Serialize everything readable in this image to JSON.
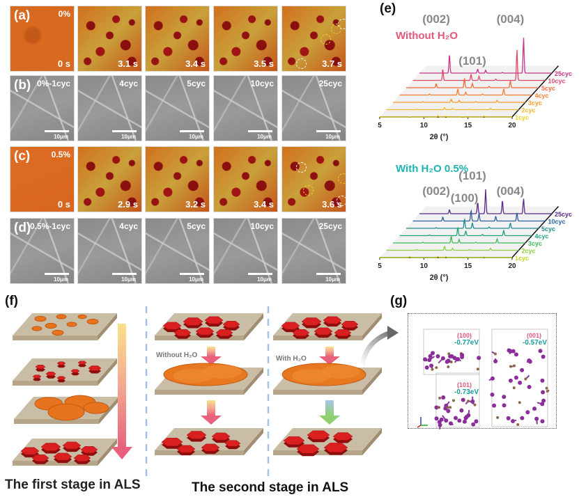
{
  "panels": {
    "a": {
      "label": "(a)",
      "condition": "0%",
      "times": [
        "0 s",
        "3.1 s",
        "3.4 s",
        "3.5 s",
        "3.7 s"
      ]
    },
    "b": {
      "label": "(b)",
      "cycles": [
        "0%-1cyc",
        "4cyc",
        "5cyc",
        "10cyc",
        "25cyc"
      ],
      "scale": "10μm"
    },
    "c": {
      "label": "(c)",
      "condition": "0.5%",
      "times": [
        "0 s",
        "2.9 s",
        "3.2 s",
        "3.4 s",
        "3.6 s"
      ]
    },
    "d": {
      "label": "(d)",
      "cycles": [
        "0.5%-1cyc",
        "4cyc",
        "5cyc",
        "10cyc",
        "25cyc"
      ],
      "scale": "10μm"
    },
    "e": {
      "label": "(e)"
    },
    "f": {
      "label": "(f)",
      "without_h2o": "Without H₂O",
      "with_h2o": "With H₂O",
      "first_stage": "The first stage in ALS",
      "second_stage": "The second stage in ALS"
    },
    "g": {
      "label": "(g)",
      "facets": [
        {
          "plane": "(100)",
          "energy": "-0.77eV"
        },
        {
          "plane": "(001)",
          "energy": "-0.57eV"
        },
        {
          "plane": "(101)",
          "energy": "-0.73eV"
        }
      ]
    }
  },
  "colors": {
    "without": "#e0587a",
    "with": "#1fb3b3",
    "peak_label": "#888888",
    "energy": "#1a9a9a",
    "plane": "#e0587a"
  },
  "chart_data": [
    {
      "type": "line",
      "title": "Without H₂O",
      "xlabel": "2θ (°)",
      "xlim": [
        5,
        20
      ],
      "xticks": [
        "5",
        "10",
        "15",
        "20"
      ],
      "peak_labels": [
        {
          "text": "(002)",
          "x": 8.4
        },
        {
          "text": "(101)",
          "x": 12.5
        },
        {
          "text": "(004)",
          "x": 16.8
        }
      ],
      "peak_positions": [
        8.4,
        11.6,
        12.5,
        14.4,
        16.8
      ],
      "series": [
        {
          "name": "1cyc",
          "color": "#f2d320",
          "heights": [
            0.5,
            2,
            1.5,
            0.5,
            1.5
          ]
        },
        {
          "name": "2cyc",
          "color": "#f5b82a",
          "heights": [
            0.8,
            3,
            2,
            0.8,
            2
          ]
        },
        {
          "name": "3cyc",
          "color": "#f79a2e",
          "heights": [
            1,
            5,
            3,
            1,
            3
          ]
        },
        {
          "name": "4cyc",
          "color": "#f57f30",
          "heights": [
            1.5,
            9,
            4,
            1.5,
            9
          ]
        },
        {
          "name": "5cyc",
          "color": "#f06a3a",
          "heights": [
            6,
            14,
            6,
            2,
            10
          ]
        },
        {
          "name": "10cyc",
          "color": "#e04a6a",
          "heights": [
            17,
            9,
            6,
            2,
            45
          ]
        },
        {
          "name": "25cyc",
          "color": "#c8338a",
          "heights": [
            28,
            6,
            4,
            1,
            52
          ]
        }
      ]
    },
    {
      "type": "line",
      "title": "With H₂O 0.5%",
      "xlabel": "2θ (°)",
      "xlim": [
        5,
        20
      ],
      "xticks": [
        "5",
        "10",
        "15",
        "20"
      ],
      "peak_labels": [
        {
          "text": "(002)",
          "x": 8.4
        },
        {
          "text": "(100)",
          "x": 11.6
        },
        {
          "text": "(101)",
          "x": 12.5
        },
        {
          "text": "(004)",
          "x": 16.8
        }
      ],
      "peak_positions": [
        8.4,
        11.6,
        12.5,
        14.4,
        16.8
      ],
      "series": [
        {
          "name": "1cyc",
          "color": "#c8d820",
          "heights": [
            1.5,
            2,
            1.5,
            0.5,
            1
          ]
        },
        {
          "name": "2cyc",
          "color": "#8ccf3a",
          "heights": [
            1,
            6,
            3,
            1,
            3
          ]
        },
        {
          "name": "3cyc",
          "color": "#3dbb5a",
          "heights": [
            1,
            10,
            5,
            1,
            6
          ]
        },
        {
          "name": "4cyc",
          "color": "#22a37a",
          "heights": [
            1,
            12,
            7,
            2,
            8
          ]
        },
        {
          "name": "5cyc",
          "color": "#1e8a8c",
          "heights": [
            1,
            14,
            8,
            2,
            8
          ]
        },
        {
          "name": "10cyc",
          "color": "#2e5fa0",
          "heights": [
            6,
            16,
            11,
            7,
            12
          ]
        },
        {
          "name": "25cyc",
          "color": "#5a2a8a",
          "heights": [
            6,
            17,
            35,
            20,
            22
          ]
        }
      ]
    }
  ]
}
